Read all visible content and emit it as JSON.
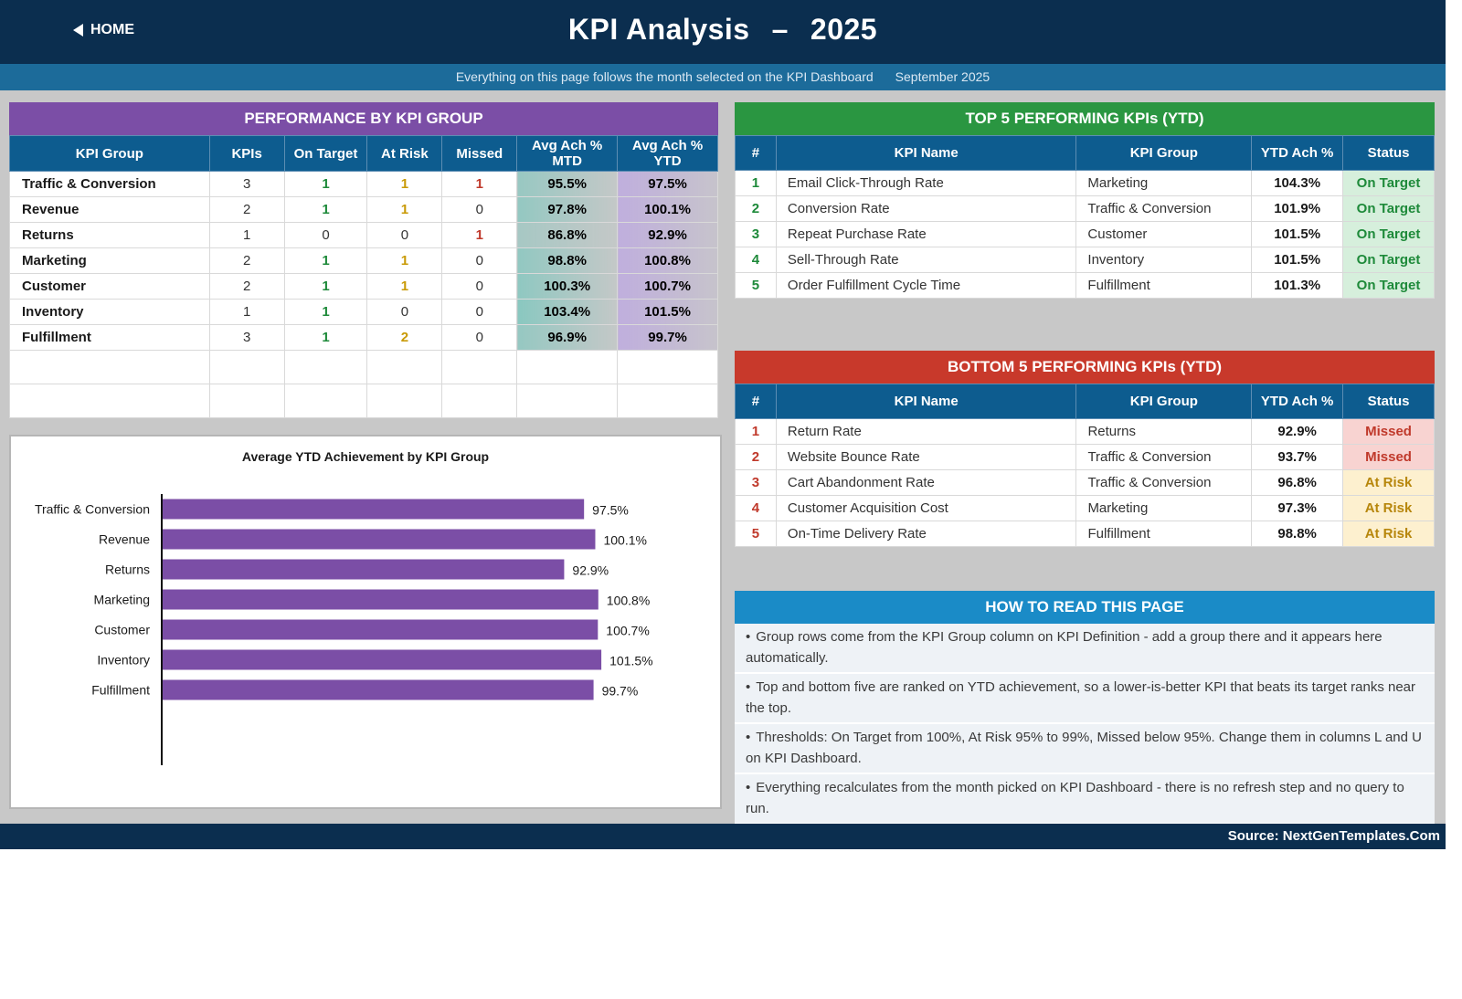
{
  "header": {
    "home_label": "HOME",
    "title": "KPI Analysis",
    "dash": "–",
    "year": "2025",
    "subtitle": "Everything on this page follows the month selected on the KPI Dashboard",
    "month": "September 2025"
  },
  "performance": {
    "title": "PERFORMANCE BY KPI GROUP",
    "columns": [
      "KPI Group",
      "KPIs",
      "On Target",
      "At Risk",
      "Missed",
      "Avg Ach % MTD",
      "Avg Ach % YTD"
    ],
    "rows": [
      {
        "group": "Traffic & Conversion",
        "kpis": "3",
        "on_target": "1",
        "at_risk": "1",
        "missed": "1",
        "mtd": "95.5%",
        "ytd": "97.5%"
      },
      {
        "group": "Revenue",
        "kpis": "2",
        "on_target": "1",
        "at_risk": "1",
        "missed": "0",
        "mtd": "97.8%",
        "ytd": "100.1%"
      },
      {
        "group": "Returns",
        "kpis": "1",
        "on_target": "0",
        "at_risk": "0",
        "missed": "1",
        "mtd": "86.8%",
        "ytd": "92.9%"
      },
      {
        "group": "Marketing",
        "kpis": "2",
        "on_target": "1",
        "at_risk": "1",
        "missed": "0",
        "mtd": "98.8%",
        "ytd": "100.8%"
      },
      {
        "group": "Customer",
        "kpis": "2",
        "on_target": "1",
        "at_risk": "1",
        "missed": "0",
        "mtd": "100.3%",
        "ytd": "100.7%"
      },
      {
        "group": "Inventory",
        "kpis": "1",
        "on_target": "1",
        "at_risk": "0",
        "missed": "0",
        "mtd": "103.4%",
        "ytd": "101.5%"
      },
      {
        "group": "Fulfillment",
        "kpis": "3",
        "on_target": "1",
        "at_risk": "2",
        "missed": "0",
        "mtd": "96.9%",
        "ytd": "99.7%"
      }
    ]
  },
  "top5": {
    "title": "TOP 5 PERFORMING KPIs  (YTD)",
    "columns": [
      "#",
      "KPI Name",
      "KPI Group",
      "YTD Ach %",
      "Status"
    ],
    "rows": [
      {
        "rank": "1",
        "name": "Email Click-Through Rate",
        "group": "Marketing",
        "ytd": "104.3%",
        "status": "On Target"
      },
      {
        "rank": "2",
        "name": "Conversion Rate",
        "group": "Traffic & Conversion",
        "ytd": "101.9%",
        "status": "On Target"
      },
      {
        "rank": "3",
        "name": "Repeat Purchase Rate",
        "group": "Customer",
        "ytd": "101.5%",
        "status": "On Target"
      },
      {
        "rank": "4",
        "name": "Sell-Through Rate",
        "group": "Inventory",
        "ytd": "101.5%",
        "status": "On Target"
      },
      {
        "rank": "5",
        "name": "Order Fulfillment Cycle Time",
        "group": "Fulfillment",
        "ytd": "101.3%",
        "status": "On Target"
      }
    ]
  },
  "bottom5": {
    "title": "BOTTOM 5 PERFORMING KPIs  (YTD)",
    "columns": [
      "#",
      "KPI Name",
      "KPI Group",
      "YTD Ach %",
      "Status"
    ],
    "rows": [
      {
        "rank": "1",
        "name": "Return Rate",
        "group": "Returns",
        "ytd": "92.9%",
        "status": "Missed"
      },
      {
        "rank": "2",
        "name": "Website Bounce Rate",
        "group": "Traffic & Conversion",
        "ytd": "93.7%",
        "status": "Missed"
      },
      {
        "rank": "3",
        "name": "Cart Abandonment Rate",
        "group": "Traffic & Conversion",
        "ytd": "96.8%",
        "status": "At Risk"
      },
      {
        "rank": "4",
        "name": "Customer Acquisition Cost",
        "group": "Marketing",
        "ytd": "97.3%",
        "status": "At Risk"
      },
      {
        "rank": "5",
        "name": "On-Time Delivery Rate",
        "group": "Fulfillment",
        "ytd": "98.8%",
        "status": "At Risk"
      }
    ]
  },
  "how_to_read": {
    "title": "HOW TO READ THIS PAGE",
    "bullet": "•",
    "items": [
      "Group rows come from the KPI Group column on KPI Definition - add a group there and it appears here automatically.",
      "Top and bottom five are ranked on YTD achievement, so a lower-is-better KPI that beats its target ranks near the top.",
      "Thresholds: On Target from 100%, At Risk 95% to 99%, Missed below 95%. Change them in columns L and U on KPI Dashboard.",
      "Everything recalculates from the month picked on KPI Dashboard - there is no refresh step and no query to run."
    ]
  },
  "footer": {
    "source": "Source: NextGenTemplates.Com"
  },
  "colors": {
    "navy": "#0b2e4f",
    "purple": "#7b4ea6",
    "green": "#2a9641",
    "red": "#c8392b",
    "blue": "#1a8bc7",
    "bar": "#7b4ea6"
  },
  "chart_data": {
    "type": "bar",
    "orientation": "horizontal",
    "title": "Average YTD Achievement by KPI Group",
    "categories": [
      "Traffic & Conversion",
      "Revenue",
      "Returns",
      "Marketing",
      "Customer",
      "Inventory",
      "Fulfillment"
    ],
    "values": [
      97.5,
      100.1,
      92.9,
      100.8,
      100.7,
      101.5,
      99.7
    ],
    "labels": [
      "97.5%",
      "100.1%",
      "92.9%",
      "100.8%",
      "100.7%",
      "101.5%",
      "99.7%"
    ],
    "xlim": [
      0,
      110
    ],
    "grid": false,
    "legend": "none"
  }
}
